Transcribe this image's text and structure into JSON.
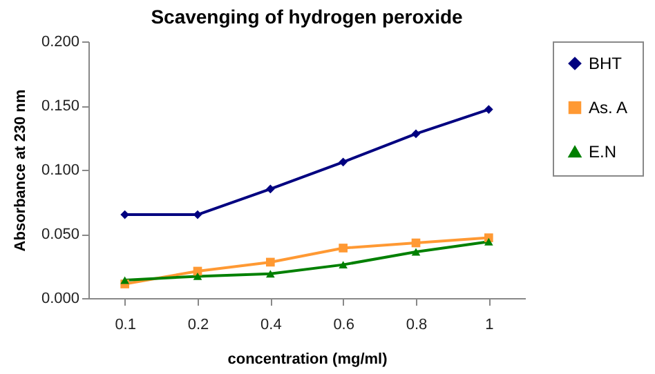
{
  "chart_data": {
    "type": "line",
    "title": "Scavenging of hydrogen peroxide",
    "xlabel": "concentration (mg/ml)",
    "ylabel": "Absorbance at 230 nm",
    "categories": [
      "0.1",
      "0.2",
      "0.4",
      "0.6",
      "0.8",
      "1"
    ],
    "series": [
      {
        "name": "BHT",
        "color": "#000080",
        "marker": "diamond",
        "values": [
          0.065,
          0.065,
          0.085,
          0.106,
          0.128,
          0.147
        ]
      },
      {
        "name": "As. A",
        "color": "#ff9933",
        "marker": "square",
        "values": [
          0.011,
          0.021,
          0.028,
          0.039,
          0.043,
          0.047
        ]
      },
      {
        "name": "E.N",
        "color": "#008000",
        "marker": "triangle",
        "values": [
          0.014,
          0.017,
          0.019,
          0.026,
          0.036,
          0.044
        ]
      }
    ],
    "ylim": [
      0,
      0.2
    ],
    "yticks": [
      {
        "value": 0,
        "label": "0.000"
      },
      {
        "value": 0.05,
        "label": "0.050"
      },
      {
        "value": 0.1,
        "label": "0.100"
      },
      {
        "value": 0.15,
        "label": "0.150"
      },
      {
        "value": 0.2,
        "label": "0.200"
      }
    ],
    "grid": false,
    "legend": "right"
  }
}
